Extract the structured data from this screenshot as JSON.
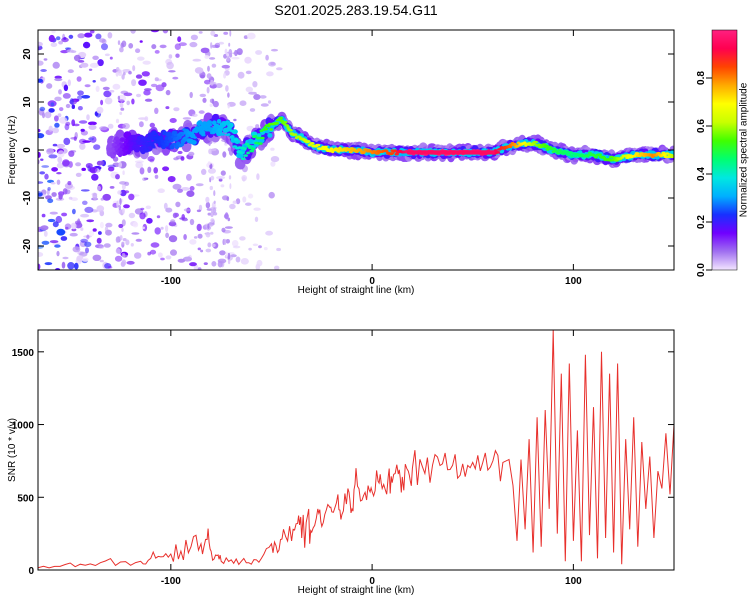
{
  "title": "S201.2025.283.19.54.G11",
  "chart_data": [
    {
      "type": "heatmap",
      "xlabel": "Height of straight line (km)",
      "ylabel": "Frequency (Hz)",
      "xlim": [
        -166,
        150
      ],
      "ylim": [
        -25,
        25
      ],
      "x_ticks": [
        -100,
        0,
        100
      ],
      "x_tick_labels": [
        "-100",
        "0",
        "100"
      ],
      "y_ticks": [
        -20,
        -10,
        0,
        10,
        20
      ],
      "y_tick_labels": [
        "-20",
        "-10",
        "0",
        "10",
        "20"
      ],
      "colorbar": {
        "label": "Normalized spectral amplitude",
        "range": [
          0,
          1
        ],
        "ticks": [
          0.0,
          0.2,
          0.4,
          0.6,
          0.8
        ],
        "tick_labels": [
          "0.0",
          "0.2",
          "0.4",
          "0.6",
          "0.8"
        ],
        "colors": [
          "#f3e6ff",
          "#a070f0",
          "#7000ff",
          "#1830ff",
          "#00b0ff",
          "#00e8e0",
          "#00ff70",
          "#40ff00",
          "#c8ff00",
          "#ffff00",
          "#ffaa00",
          "#ff4400",
          "#ff0050",
          "#ff2080"
        ]
      },
      "ridge": {
        "x": [
          -130,
          -115,
          -100,
          -90,
          -80,
          -70,
          -65,
          -60,
          -55,
          -50,
          -45,
          -40,
          -35,
          -30,
          -20,
          -10,
          0,
          10,
          20,
          30,
          40,
          50,
          60,
          70,
          80,
          90,
          100,
          110,
          120,
          130,
          140,
          150
        ],
        "y": [
          0.5,
          1.5,
          2,
          3,
          5,
          4,
          -1,
          1,
          3,
          5,
          6.5,
          3.5,
          2.5,
          1,
          0,
          0,
          -0.5,
          -0.5,
          -0.5,
          -0.5,
          -0.5,
          -0.5,
          -0.5,
          1,
          1.5,
          0,
          -1,
          -1,
          -2,
          -1,
          -1,
          -1
        ],
        "amplitude": [
          0.1,
          0.2,
          0.25,
          0.3,
          0.3,
          0.35,
          0.4,
          0.45,
          0.5,
          0.55,
          0.55,
          0.6,
          0.6,
          0.65,
          0.7,
          0.75,
          0.8,
          0.85,
          1.0,
          1.0,
          1.0,
          1.0,
          0.95,
          0.8,
          0.6,
          0.5,
          0.45,
          0.5,
          0.55,
          0.7,
          0.8,
          0.6
        ]
      }
    },
    {
      "type": "line",
      "xlabel": "Height of straight line (km)",
      "ylabel": "SNR (10 * v/v)",
      "xlim": [
        -166,
        150
      ],
      "ylim": [
        0,
        1650
      ],
      "x_ticks": [
        -100,
        0,
        100
      ],
      "x_tick_labels": [
        "-100",
        "0",
        "100"
      ],
      "y_ticks": [
        0,
        500,
        1000,
        1500
      ],
      "y_tick_labels": [
        "0",
        "500",
        "1000",
        "1500"
      ],
      "series": [
        {
          "color": "#e8302c",
          "x": [
            -166,
            -155,
            -145,
            -135,
            -125,
            -115,
            -110,
            -105,
            -100,
            -95,
            -90,
            -85,
            -82,
            -80,
            -77,
            -75,
            -70,
            -65,
            -60,
            -55,
            -50,
            -47,
            -44,
            -40,
            -37,
            -35,
            -32,
            -30,
            -27,
            -25,
            -22,
            -20,
            -17,
            -15,
            -12,
            -10,
            -8,
            -5,
            -2,
            0,
            3,
            5,
            8,
            10,
            13,
            15,
            18,
            20,
            25,
            30,
            35,
            40,
            45,
            50,
            55,
            60,
            65,
            68,
            70,
            72,
            74,
            76,
            78,
            80,
            82,
            84,
            86,
            88,
            90,
            92,
            94,
            96,
            98,
            100,
            102,
            104,
            106,
            108,
            110,
            112,
            114,
            116,
            118,
            120,
            122,
            124,
            126,
            128,
            130,
            132,
            134,
            136,
            138,
            140,
            142,
            144,
            146,
            148,
            150
          ],
          "y": [
            15,
            25,
            40,
            50,
            55,
            60,
            80,
            90,
            110,
            130,
            160,
            180,
            210,
            130,
            100,
            60,
            70,
            60,
            40,
            80,
            180,
            120,
            280,
            200,
            320,
            220,
            380,
            260,
            420,
            300,
            450,
            400,
            520,
            380,
            560,
            420,
            700,
            480,
            580,
            540,
            610,
            560,
            640,
            600,
            660,
            640,
            680,
            700,
            710,
            720,
            730,
            720,
            730,
            740,
            740,
            750,
            740,
            760,
            580,
            200,
            760,
            280,
            900,
            120,
            1050,
            160,
            1100,
            420,
            1650,
            250,
            1350,
            60,
            1420,
            200,
            960,
            60,
            1480,
            240,
            1120,
            80,
            1500,
            220,
            1350,
            120,
            1420,
            40,
            900,
            280,
            1050,
            160,
            880,
            420,
            780,
            220,
            680,
            560,
            940,
            520,
            1000
          ]
        }
      ]
    }
  ]
}
